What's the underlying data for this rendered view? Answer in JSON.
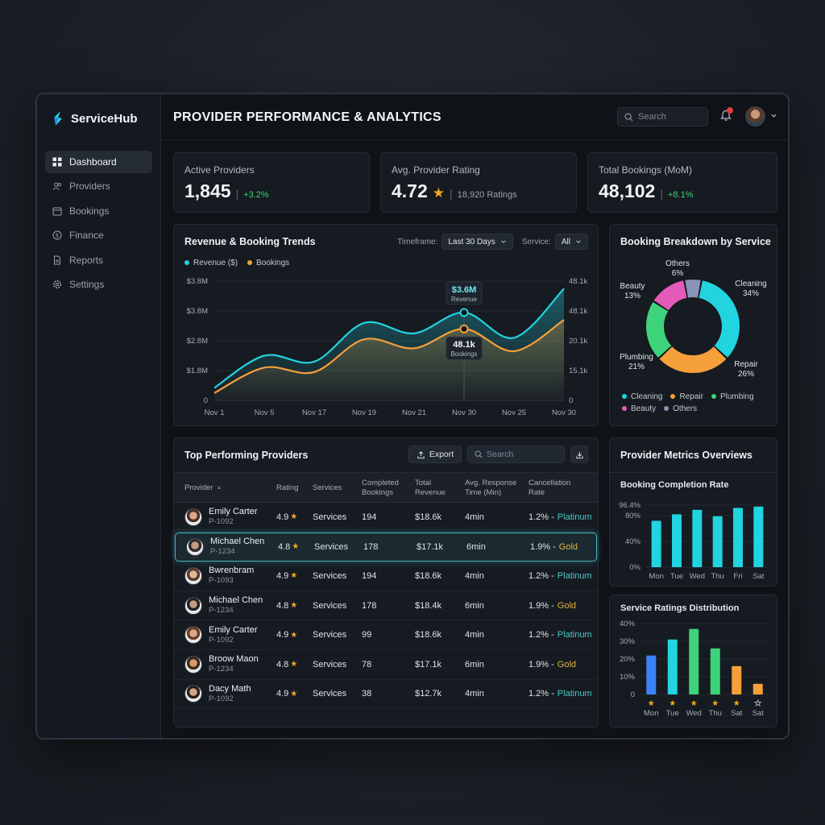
{
  "app": {
    "name": "ServiceHub"
  },
  "sidebar": {
    "items": [
      {
        "label": "Dashboard",
        "icon": "grid-icon",
        "active": true
      },
      {
        "label": "Providers",
        "icon": "users-icon"
      },
      {
        "label": "Bookings",
        "icon": "calendar-icon"
      },
      {
        "label": "Finance",
        "icon": "dollar-icon"
      },
      {
        "label": "Reports",
        "icon": "document-icon"
      },
      {
        "label": "Settings",
        "icon": "gear-icon"
      }
    ]
  },
  "header": {
    "title": "PROVIDER PERFORMANCE & ANALYTICS",
    "search_placeholder": "Search"
  },
  "kpis": [
    {
      "label": "Active Providers",
      "value": "1,845",
      "delta": "+3.2%"
    },
    {
      "label": "Avg. Provider Rating",
      "value": "4.72",
      "sub": "18,920 Ratings"
    },
    {
      "label": "Total Bookings (MoM)",
      "value": "48,102",
      "delta": "+8.1%"
    }
  ],
  "trends": {
    "title": "Revenue & Booking Trends",
    "timeframe_label": "Timeframe:",
    "timeframe_value": "Last 30 Days",
    "service_label": "Service:",
    "service_value": "All",
    "tooltip_revenue_value": "$3.6M",
    "tooltip_revenue_label": "Revenue",
    "tooltip_bookings_value": "48.1k",
    "tooltip_bookings_label": "Bookings"
  },
  "donut": {
    "title": "Booking Breakdown by Service",
    "labels": {
      "others": [
        "Others",
        "6%"
      ],
      "beauty": [
        "Beauty",
        "13%"
      ],
      "cleaning": [
        "Cleaning",
        "34%"
      ],
      "plumbing": [
        "Plumbing",
        "21%"
      ],
      "repair": [
        "Repair",
        "26%"
      ]
    }
  },
  "providers": {
    "title": "Top Performing Providers",
    "export_label": "Export",
    "search_placeholder": "Search",
    "columns": [
      "Provider",
      "Rating",
      "Services",
      "Completed Bookings",
      "Total Revenue",
      "Avg. Response Time (Min)",
      "Cancellation Rate"
    ],
    "rows": [
      {
        "name": "Emily Carter",
        "id": "P-1092",
        "rating": "4.9",
        "services": "Services",
        "bookings": "194",
        "revenue": "$18.6k",
        "response": "4min",
        "rate": "1.2% -",
        "tier": "Platinum"
      },
      {
        "name": "Michael Chen",
        "id": "P-1234",
        "rating": "4.8",
        "services": "Services",
        "bookings": "178",
        "revenue": "$17.1k",
        "response": "6min",
        "rate": "1.9% -",
        "tier": "Gold"
      },
      {
        "name": "Bwrenbram",
        "id": "P-1093",
        "rating": "4.9",
        "services": "Services",
        "bookings": "194",
        "revenue": "$18.6k",
        "response": "4min",
        "rate": "1.2% -",
        "tier": "Platinum"
      },
      {
        "name": "Michael Chen",
        "id": "P-1234",
        "rating": "4.8",
        "services": "Services",
        "bookings": "178",
        "revenue": "$18.4k",
        "response": "6min",
        "rate": "1.9% -",
        "tier": "Gold"
      },
      {
        "name": "Emily Carter",
        "id": "P-1092",
        "rating": "4.9",
        "services": "Services",
        "bookings": "99",
        "revenue": "$18.6k",
        "response": "4min",
        "rate": "1.2% -",
        "tier": "Platinum"
      },
      {
        "name": "Broow Maon",
        "id": "P-1234",
        "rating": "4.8",
        "services": "Services",
        "bookings": "78",
        "revenue": "$17.1k",
        "response": "6min",
        "rate": "1.9% -",
        "tier": "Gold"
      },
      {
        "name": "Dacy Math",
        "id": "P-1092",
        "rating": "4.9",
        "services": "Services",
        "bookings": "38",
        "revenue": "$12.7k",
        "response": "4min",
        "rate": "1.2% -",
        "tier": "Platinum"
      }
    ]
  },
  "metrics": {
    "title": "Provider Metrics Overviews",
    "completion_title": "Booking Completion Rate",
    "ratings_title": "Service Ratings Distribution"
  },
  "colors": {
    "teal": "#22d3e0",
    "orange": "#f5a03a",
    "green": "#3ed37b",
    "pink": "#e45ab8",
    "slate": "#8a93b8",
    "blue": "#3b82f6",
    "gold": "#e3b341"
  },
  "chart_data": [
    {
      "type": "line",
      "x": [
        "Nov 1",
        "Nov 5",
        "Nov 17",
        "Nov 19",
        "Nov 21",
        "Nov 30",
        "Nov 25",
        "Nov 30"
      ],
      "series": [
        {
          "name": "Revenue ($)",
          "values": [
            0.42,
            1.5,
            1.3,
            2.6,
            2.25,
            2.95,
            2.1,
            3.75
          ]
        },
        {
          "name": "Bookings",
          "values": [
            0.25,
            1.1,
            0.95,
            2.05,
            1.75,
            2.4,
            1.65,
            2.7
          ]
        }
      ],
      "y_ticks_left": [
        "0",
        "$1.8M",
        "$2.8M",
        "$3.8M",
        "$3.8M"
      ],
      "y_ticks_right": [
        "0",
        "15.1k",
        "20.1k",
        "48.1k",
        "48.1k"
      ],
      "ylim": [
        0,
        4
      ],
      "grid": true,
      "legend": "top-left"
    },
    {
      "type": "pie",
      "categories": [
        "Cleaning",
        "Repair",
        "Plumbing",
        "Beauty",
        "Others"
      ],
      "values": [
        34,
        26,
        21,
        13,
        6
      ],
      "legend": "bottom"
    },
    {
      "type": "bar",
      "title": "Booking Completion Rate",
      "categories": [
        "Mon",
        "Tue",
        "Wed",
        "Thu",
        "Fri",
        "Sat"
      ],
      "values": [
        72,
        82,
        89,
        79,
        92,
        94
      ],
      "y_ticks": [
        "0%",
        "40%",
        "80%",
        "96.4%"
      ],
      "ylim": [
        0,
        100
      ]
    },
    {
      "type": "bar",
      "title": "Service Ratings Distribution",
      "categories": [
        "Mon",
        "Tue",
        "Wed",
        "Thu",
        "Sat",
        "Sat"
      ],
      "values": [
        22,
        31,
        37,
        26,
        16,
        6
      ],
      "bar_colors": [
        "#3b82f6",
        "#22d3e0",
        "#3ed37b",
        "#3ed37b",
        "#f5a03a",
        "#f5a03a"
      ],
      "star_filled": [
        true,
        true,
        true,
        true,
        true,
        false
      ],
      "y_ticks": [
        "0",
        "10%",
        "20%",
        "30%",
        "40%"
      ],
      "ylim": [
        0,
        40
      ]
    }
  ]
}
